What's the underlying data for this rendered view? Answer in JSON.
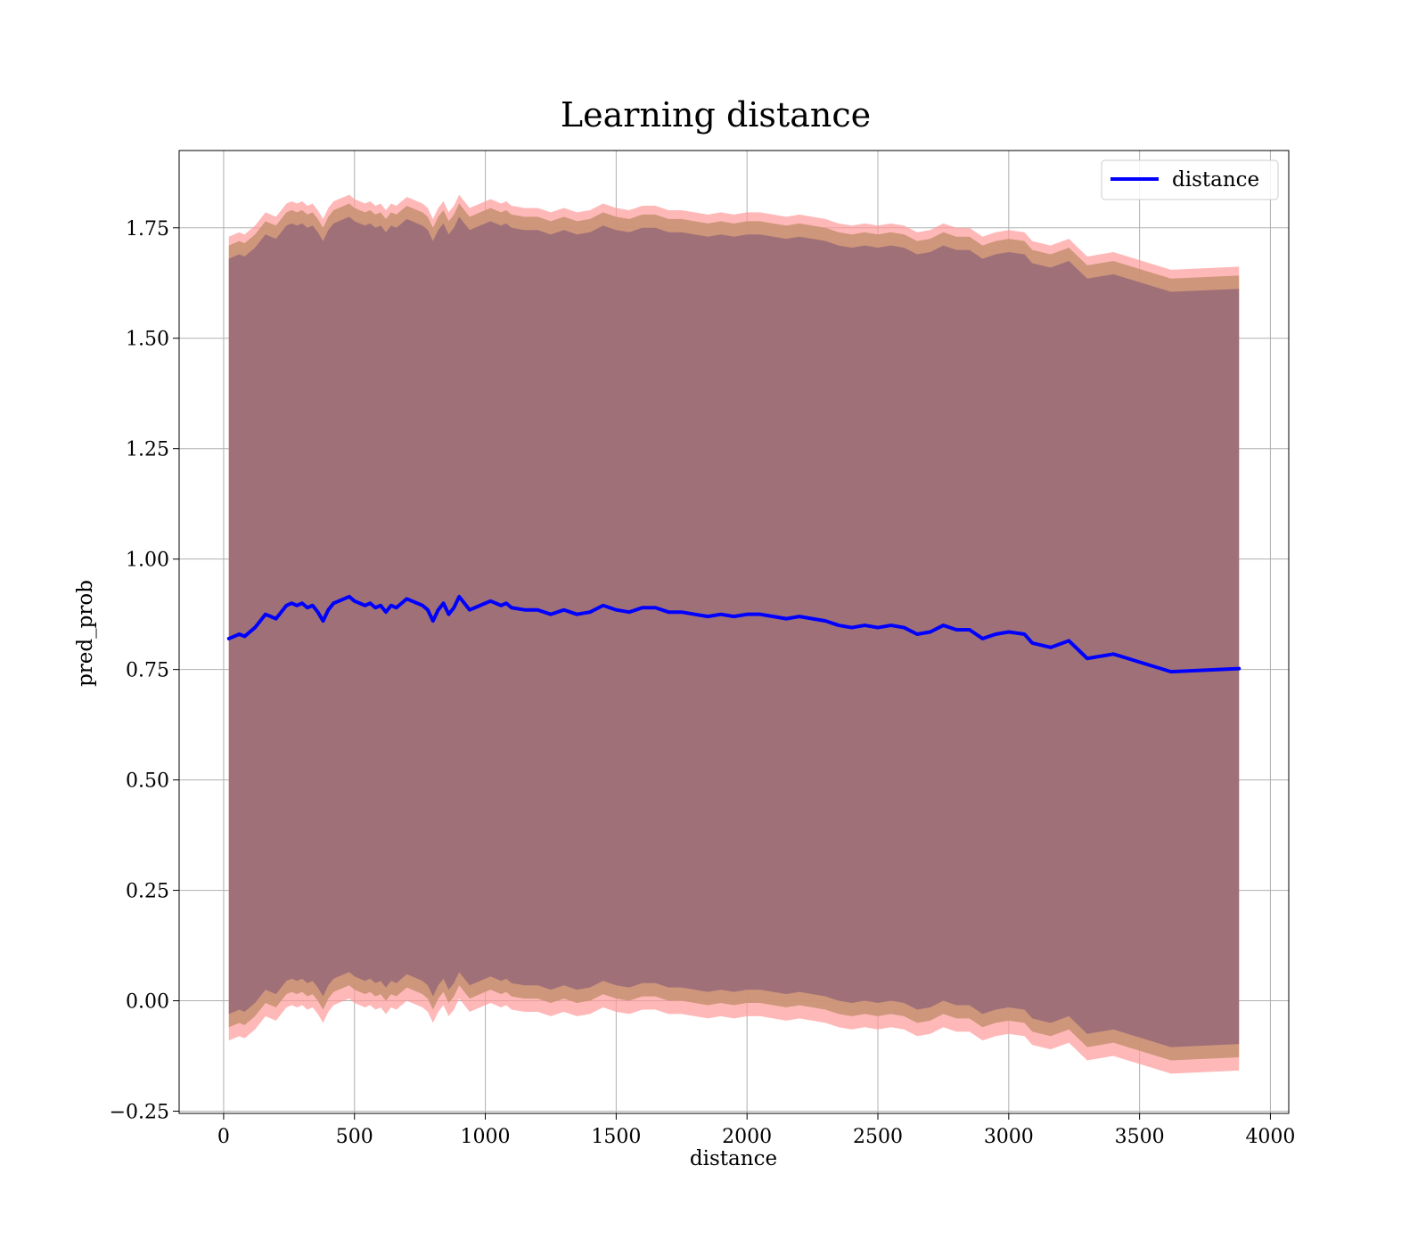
{
  "chart_data": {
    "type": "line",
    "title": "Learning distance",
    "xlabel": "distance",
    "ylabel": "pred_prob",
    "xlim": [
      -170,
      4070
    ],
    "ylim": [
      -0.255,
      1.925
    ],
    "xticks": [
      0,
      500,
      1000,
      1500,
      2000,
      2500,
      3000,
      3500,
      4000
    ],
    "yticks": [
      -0.25,
      0.0,
      0.25,
      0.5,
      0.75,
      1.0,
      1.25,
      1.5,
      1.75
    ],
    "ytick_labels": [
      "−0.25",
      "0.00",
      "0.25",
      "0.50",
      "0.75",
      "1.00",
      "1.25",
      "1.50",
      "1.75"
    ],
    "grid": true,
    "legend": {
      "position": "upper-right",
      "entries": [
        "distance"
      ]
    },
    "colors": {
      "line": "#0000ff",
      "band_outer": "#ff9a9a",
      "band_middle": "#c99273",
      "band_inner": "#a07079"
    },
    "series": [
      {
        "name": "distance",
        "x": [
          20,
          40,
          60,
          80,
          100,
          120,
          140,
          160,
          180,
          200,
          220,
          240,
          260,
          280,
          300,
          320,
          340,
          360,
          380,
          400,
          420,
          440,
          460,
          480,
          500,
          520,
          540,
          560,
          580,
          600,
          620,
          640,
          660,
          680,
          700,
          720,
          740,
          760,
          780,
          800,
          820,
          840,
          860,
          880,
          900,
          920,
          940,
          960,
          980,
          1000,
          1020,
          1040,
          1060,
          1080,
          1100,
          1150,
          1200,
          1250,
          1300,
          1350,
          1400,
          1450,
          1500,
          1550,
          1600,
          1650,
          1700,
          1750,
          1800,
          1850,
          1900,
          1950,
          2000,
          2050,
          2100,
          2150,
          2200,
          2250,
          2300,
          2350,
          2400,
          2450,
          2500,
          2550,
          2600,
          2650,
          2700,
          2750,
          2800,
          2850,
          2900,
          2950,
          3000,
          3060,
          3090,
          3160,
          3230,
          3300,
          3400,
          3620,
          3880
        ],
        "y": [
          0.82,
          0.825,
          0.83,
          0.825,
          0.835,
          0.845,
          0.86,
          0.875,
          0.87,
          0.865,
          0.88,
          0.895,
          0.9,
          0.895,
          0.9,
          0.89,
          0.895,
          0.88,
          0.86,
          0.885,
          0.9,
          0.905,
          0.91,
          0.915,
          0.905,
          0.9,
          0.895,
          0.9,
          0.89,
          0.895,
          0.88,
          0.895,
          0.89,
          0.9,
          0.91,
          0.905,
          0.9,
          0.895,
          0.885,
          0.86,
          0.885,
          0.9,
          0.875,
          0.89,
          0.915,
          0.9,
          0.885,
          0.89,
          0.895,
          0.9,
          0.905,
          0.9,
          0.895,
          0.9,
          0.89,
          0.885,
          0.885,
          0.875,
          0.885,
          0.875,
          0.88,
          0.895,
          0.885,
          0.88,
          0.89,
          0.89,
          0.88,
          0.88,
          0.875,
          0.87,
          0.875,
          0.87,
          0.875,
          0.875,
          0.87,
          0.865,
          0.87,
          0.865,
          0.86,
          0.85,
          0.845,
          0.85,
          0.845,
          0.85,
          0.845,
          0.83,
          0.835,
          0.85,
          0.84,
          0.84,
          0.82,
          0.83,
          0.835,
          0.83,
          0.81,
          0.8,
          0.815,
          0.775,
          0.785,
          0.745,
          0.752
        ]
      }
    ]
  }
}
